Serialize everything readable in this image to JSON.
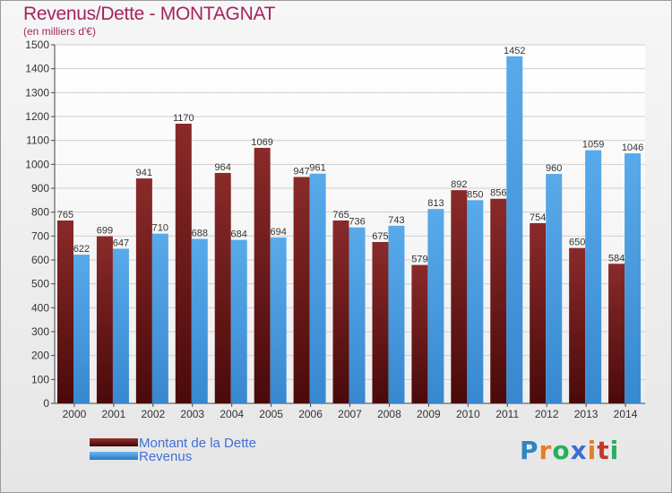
{
  "chart": {
    "title": "Revenus/Dette - MONTAGNAT",
    "subtitle": "(en milliers d'€)"
  },
  "legend": {
    "items": [
      {
        "label": "Montant de la Dette"
      },
      {
        "label": "Revenus"
      }
    ]
  },
  "brand": {
    "letters": [
      "P",
      "r",
      "o",
      "x",
      "i",
      "t",
      "i"
    ],
    "colors": [
      "#2e86c1",
      "#e67e22",
      "#27ae60",
      "#3a6fd1",
      "#e67e22",
      "#c0392b",
      "#27ae60"
    ]
  },
  "colors": {
    "dette": "#7a2020",
    "revenus": "#4a9de0",
    "title": "#a4245e",
    "legend_text": "#3f6fd8"
  },
  "chart_data": {
    "type": "bar",
    "title": "Revenus/Dette - MONTAGNAT",
    "subtitle": "(en milliers d'€)",
    "categories": [
      "2000",
      "2001",
      "2002",
      "2003",
      "2004",
      "2005",
      "2006",
      "2007",
      "2008",
      "2009",
      "2010",
      "2011",
      "2012",
      "2013",
      "2014"
    ],
    "series": [
      {
        "name": "Montant de la Dette",
        "color": "#7a2020",
        "values": [
          765,
          699,
          941,
          1170,
          964,
          1069,
          947,
          765,
          675,
          579,
          892,
          856,
          754,
          650,
          584
        ]
      },
      {
        "name": "Revenus",
        "color": "#4a9de0",
        "values": [
          622,
          647,
          710,
          688,
          684,
          694,
          961,
          736,
          743,
          813,
          850,
          1452,
          960,
          1059,
          1046
        ]
      }
    ],
    "ylim": [
      0,
      1500
    ],
    "yticks": [
      0,
      100,
      200,
      300,
      400,
      500,
      600,
      700,
      800,
      900,
      1000,
      1100,
      1200,
      1300,
      1400,
      1500
    ],
    "grid": true,
    "legend_position": "bottom-left"
  }
}
